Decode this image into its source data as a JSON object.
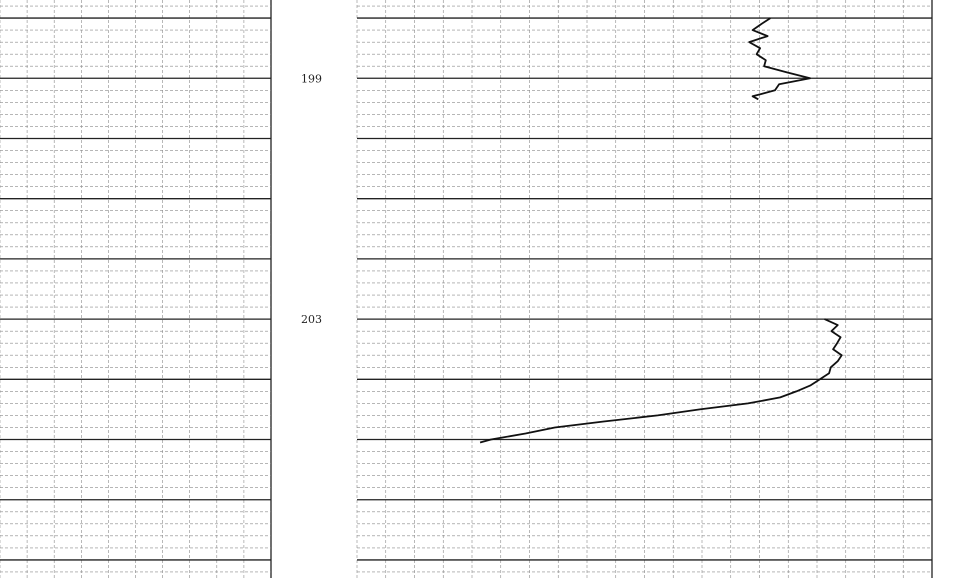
{
  "chart_data": {
    "type": "line",
    "title": "",
    "xlabel": "",
    "ylabel": "",
    "y_axis": {
      "orientation": "depth-down",
      "range": [
        197.7,
        207.3
      ]
    },
    "depth_labels": [
      "199",
      "203"
    ],
    "major_depth_lines": [
      198,
      199,
      200,
      201,
      202,
      203,
      204,
      205,
      206,
      207
    ],
    "minor_depth_step": 0.2,
    "x_range": [
      0,
      100
    ],
    "grid": true,
    "series": [
      {
        "values": [
          [
            198.0,
            71.9
          ],
          [
            198.1,
            70.3
          ],
          [
            198.2,
            68.8
          ],
          [
            198.3,
            71.4
          ],
          [
            198.4,
            68.2
          ],
          [
            198.5,
            70.1
          ],
          [
            198.6,
            69.5
          ],
          [
            198.7,
            71.1
          ],
          [
            198.8,
            70.8
          ],
          [
            198.9,
            74.7
          ],
          [
            199.0,
            78.8
          ],
          [
            199.1,
            73.4
          ],
          [
            199.2,
            72.7
          ],
          [
            199.3,
            68.8
          ],
          [
            199.35,
            69.8
          ]
        ]
      },
      {
        "values": [
          [
            203.0,
            81.3
          ],
          [
            203.1,
            83.6
          ],
          [
            203.2,
            82.5
          ],
          [
            203.3,
            84.1
          ],
          [
            203.4,
            83.5
          ],
          [
            203.5,
            82.8
          ],
          [
            203.6,
            84.3
          ],
          [
            203.7,
            83.6
          ],
          [
            203.8,
            82.4
          ],
          [
            203.9,
            82.1
          ],
          [
            204.0,
            80.5
          ],
          [
            204.1,
            78.9
          ],
          [
            204.2,
            76.4
          ],
          [
            204.3,
            73.6
          ],
          [
            204.4,
            68.0
          ],
          [
            204.5,
            59.6
          ],
          [
            204.6,
            52.3
          ],
          [
            204.7,
            42.9
          ],
          [
            204.8,
            34.4
          ],
          [
            204.9,
            29.3
          ],
          [
            205.0,
            23.3
          ],
          [
            205.05,
            21.4
          ]
        ]
      }
    ]
  }
}
